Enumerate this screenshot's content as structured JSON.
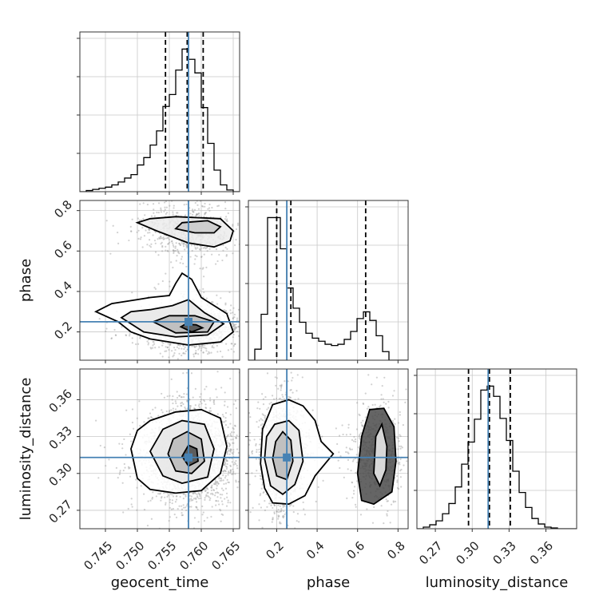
{
  "chart_data": {
    "type": "corner",
    "parameters": [
      "geocent_time",
      "phase",
      "luminosity_distance"
    ],
    "axis_labels": {
      "bottom": [
        "geocent_time",
        "phase",
        "luminosity_distance"
      ],
      "left": [
        "phase",
        "luminosity_distance"
      ]
    },
    "ranges": {
      "geocent_time": [
        0.741,
        0.766
      ],
      "phase": [
        0.06,
        0.85
      ],
      "luminosity_distance": [
        0.255,
        0.385
      ]
    },
    "ticks": {
      "geocent_time": [
        "0.745",
        "0.750",
        "0.755",
        "0.760",
        "0.765"
      ],
      "phase": [
        "0.2",
        "0.4",
        "0.6",
        "0.8"
      ],
      "luminosity_distance": [
        "0.27",
        "0.30",
        "0.33",
        "0.36"
      ]
    },
    "truths": {
      "geocent_time": 0.758,
      "phase": 0.25,
      "luminosity_distance": 0.313
    },
    "truth_color": "#4682b4",
    "quantiles": {
      "geocent_time": [
        0.7544,
        0.7578,
        0.7603
      ],
      "phase": [
        0.2,
        0.27,
        0.64
      ],
      "luminosity_distance": [
        0.297,
        0.314,
        0.331
      ]
    },
    "grid": true,
    "histograms": {
      "geocent_time": {
        "bin_edges": [
          0.741,
          0.742,
          0.743,
          0.744,
          0.745,
          0.746,
          0.747,
          0.748,
          0.749,
          0.75,
          0.751,
          0.752,
          0.753,
          0.754,
          0.755,
          0.756,
          0.757,
          0.758,
          0.759,
          0.76,
          0.761,
          0.762,
          0.763,
          0.764,
          0.765,
          0.766
        ],
        "counts": [
          0,
          2,
          4,
          6,
          8,
          12,
          17,
          24,
          30,
          47,
          60,
          82,
          107,
          150,
          171,
          214,
          251,
          233,
          209,
          148,
          85,
          38,
          12,
          3,
          0
        ]
      },
      "phase": {
        "bin_edges": [
          0.06,
          0.0916,
          0.1232,
          0.1548,
          0.1864,
          0.218,
          0.2496,
          0.2812,
          0.3128,
          0.3444,
          0.376,
          0.4076,
          0.4392,
          0.4708,
          0.5024,
          0.534,
          0.5656,
          0.5972,
          0.6288,
          0.6604,
          0.692,
          0.7236,
          0.7552,
          0.7868,
          0.8184,
          0.85
        ],
        "counts": [
          0,
          18,
          75,
          233,
          233,
          182,
          118,
          85,
          62,
          44,
          36,
          31,
          26,
          24,
          26,
          34,
          47,
          68,
          79,
          65,
          40,
          14,
          0,
          0,
          0
        ]
      },
      "luminosity_distance": {
        "bin_edges": [
          0.255,
          0.2602,
          0.2654,
          0.2706,
          0.2758,
          0.281,
          0.2862,
          0.2914,
          0.2966,
          0.3018,
          0.307,
          0.3122,
          0.3174,
          0.3226,
          0.3278,
          0.333,
          0.3382,
          0.3434,
          0.3486,
          0.3538,
          0.359,
          0.3642,
          0.3694,
          0.3746,
          0.3798,
          0.385
        ],
        "counts": [
          0,
          2,
          5,
          10,
          19,
          32,
          53,
          82,
          110,
          139,
          176,
          181,
          168,
          140,
          112,
          73,
          46,
          27,
          13,
          6,
          2,
          1,
          0,
          0,
          0
        ]
      }
    }
  }
}
